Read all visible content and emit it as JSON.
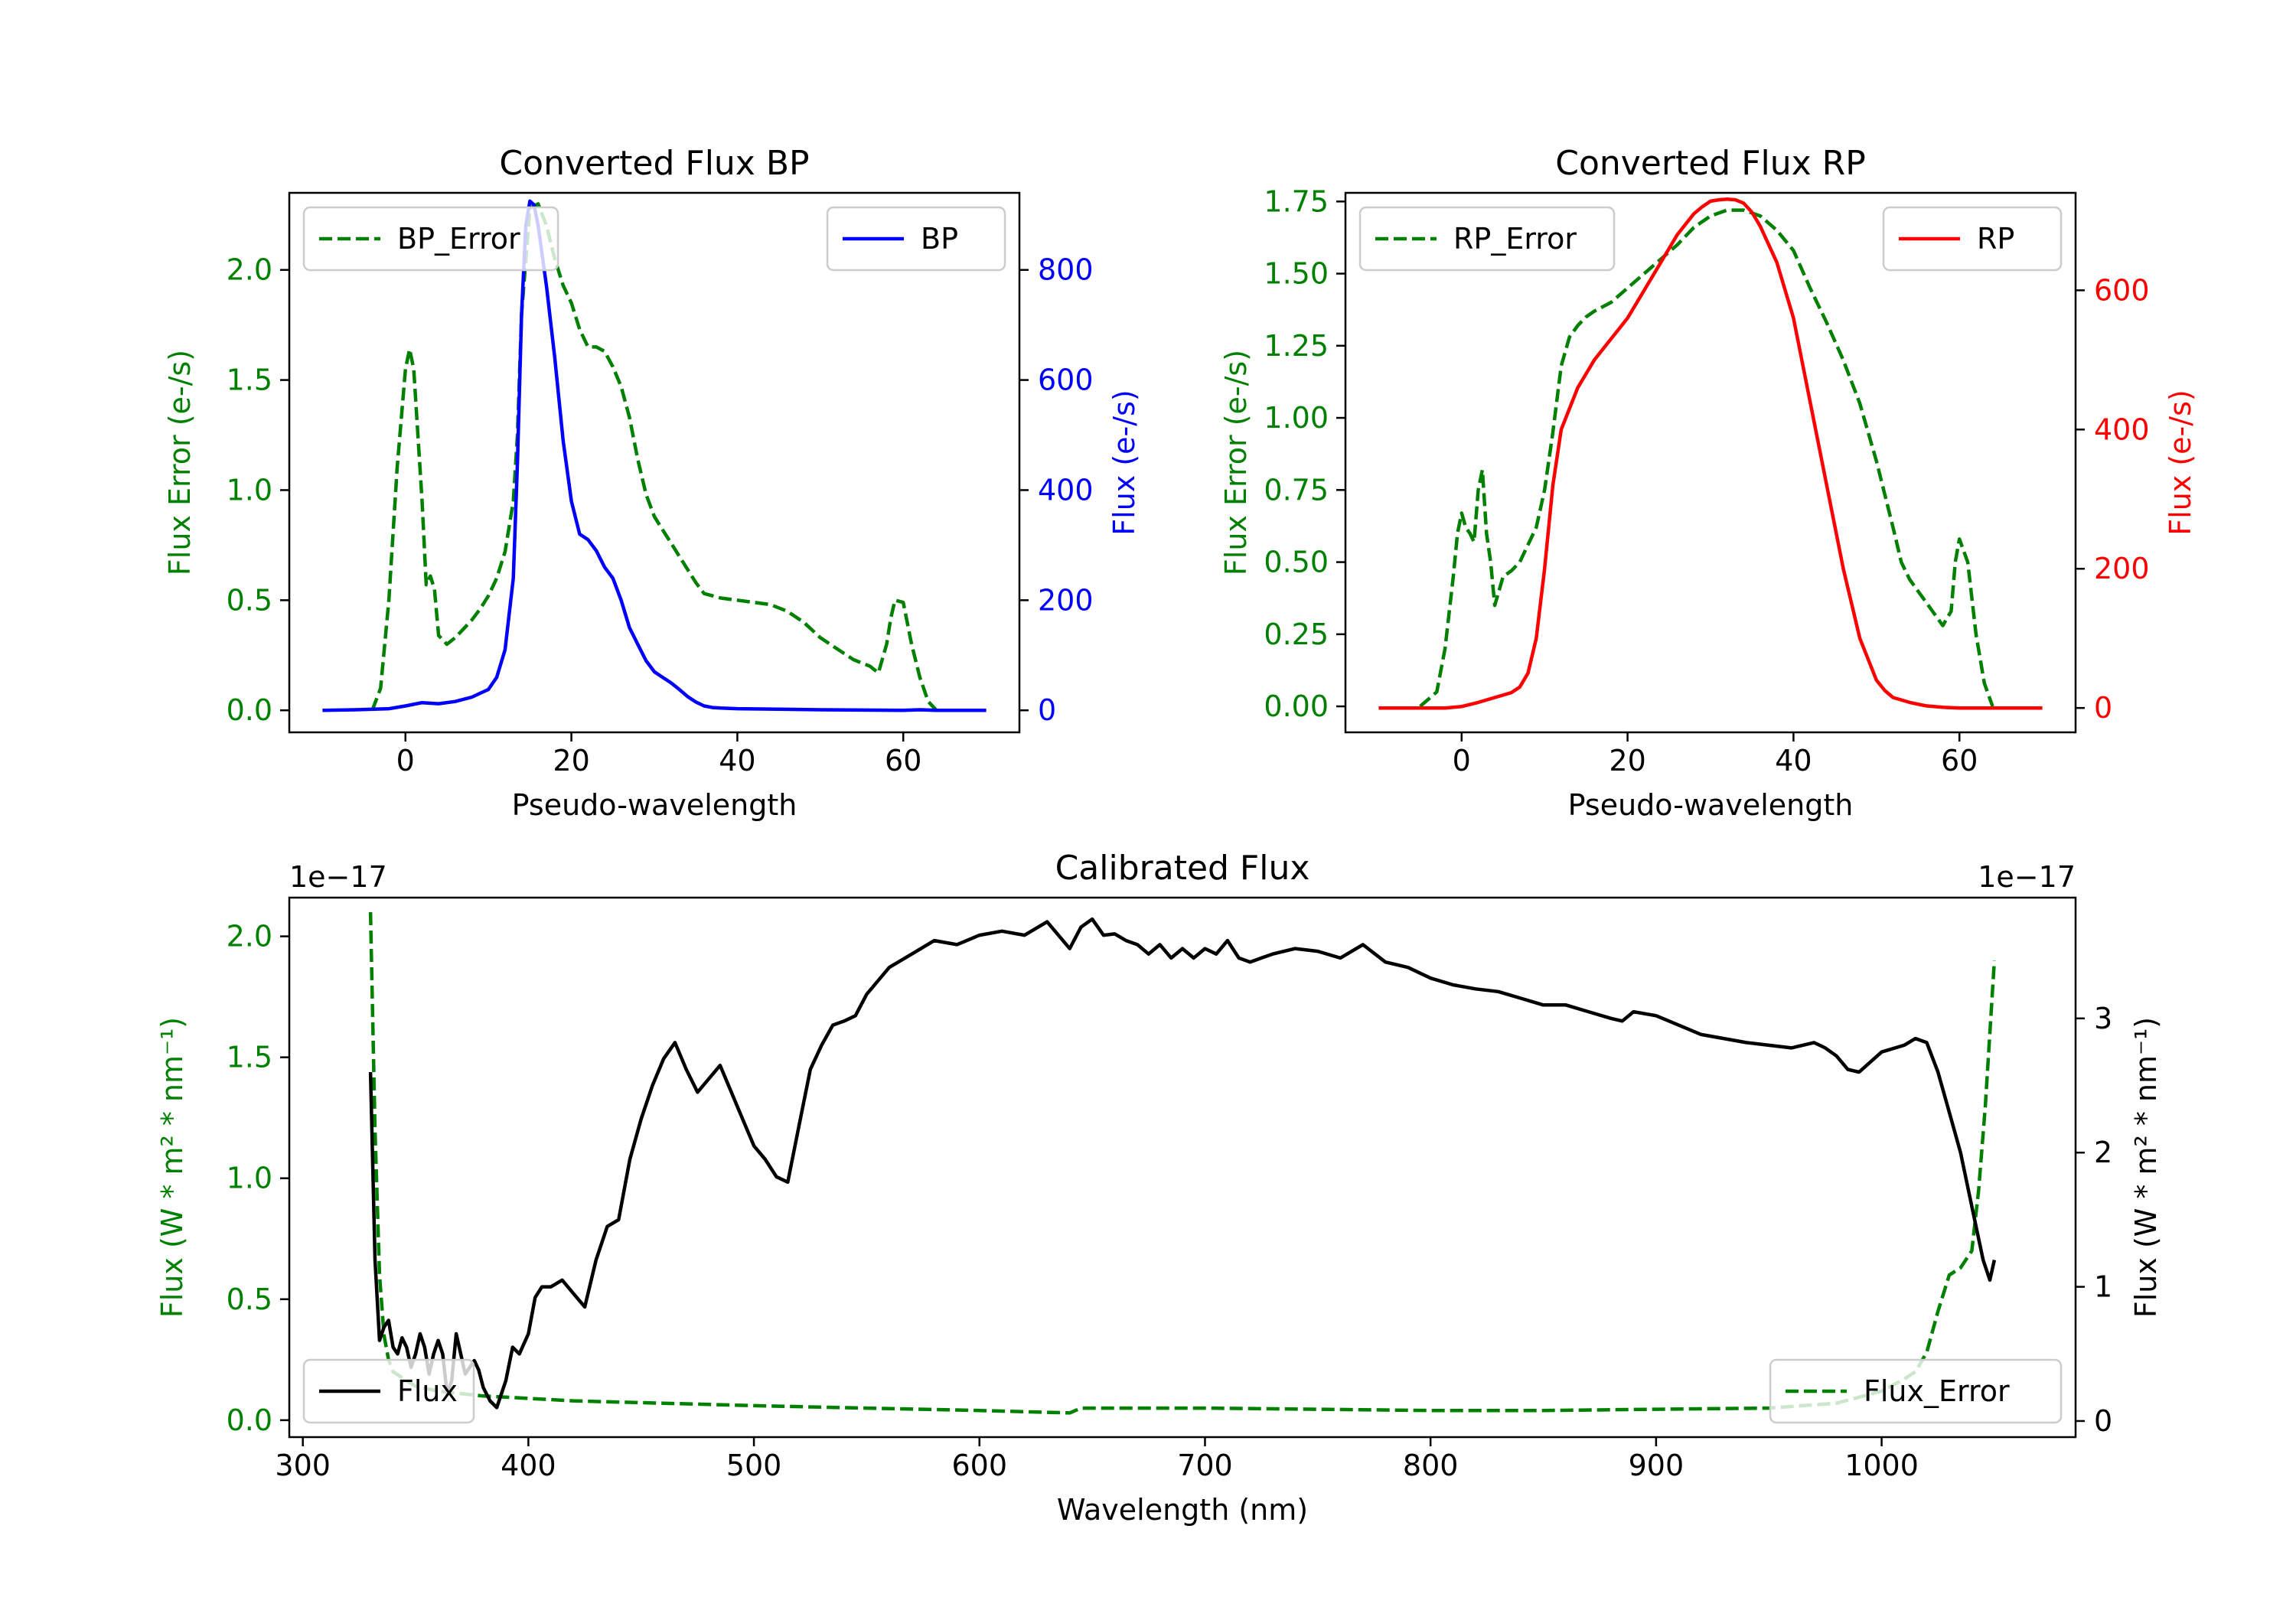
{
  "colors": {
    "error": "#008000",
    "bp": "#0000ff",
    "rp": "#ff0000",
    "flux": "#000000",
    "axis": "#000000"
  },
  "chart_data": [
    {
      "id": "bp",
      "type": "line",
      "title": "Converted Flux BP",
      "xlabel": "Pseudo-wavelength",
      "ylabel_left": "Flux Error (e-/s)",
      "ylabel_right": "Flux (e-/s)",
      "xlim": [
        -14,
        74
      ],
      "ylim_left": [
        -0.1,
        2.35
      ],
      "ylim_right": [
        -40,
        940
      ],
      "xticks": [
        "0",
        "20",
        "40",
        "60"
      ],
      "yticks_left": [
        "0.0",
        "0.5",
        "1.0",
        "1.5",
        "2.0"
      ],
      "yticks_right": [
        "0",
        "200",
        "400",
        "600",
        "800"
      ],
      "legend": [
        {
          "label": "BP_Error",
          "position": "upper-left",
          "style": "dashed"
        },
        {
          "label": "BP",
          "position": "upper-right",
          "style": "solid"
        }
      ],
      "series": [
        {
          "name": "BP_Error",
          "axis": "left",
          "style": "dashed",
          "x": [
            -4,
            -3,
            -2,
            -1,
            0,
            0.5,
            1,
            2,
            2.5,
            3,
            3.5,
            4,
            5,
            6,
            7,
            8,
            9,
            10,
            11,
            12,
            13,
            13.5,
            14,
            15,
            16,
            17,
            18,
            19,
            20,
            21,
            22,
            23,
            24,
            25,
            26,
            27,
            28,
            29,
            30,
            31,
            32,
            33,
            34,
            35,
            36,
            37,
            38,
            40,
            42,
            44,
            46,
            48,
            50,
            52,
            54,
            56,
            57,
            58,
            58.5,
            59,
            60,
            61,
            62,
            63,
            64
          ],
          "values": [
            0.0,
            0.1,
            0.5,
            1.1,
            1.55,
            1.64,
            1.55,
            0.95,
            0.57,
            0.61,
            0.55,
            0.34,
            0.3,
            0.33,
            0.37,
            0.41,
            0.46,
            0.52,
            0.6,
            0.72,
            0.95,
            1.25,
            1.8,
            2.28,
            2.3,
            2.2,
            2.05,
            1.93,
            1.85,
            1.73,
            1.65,
            1.65,
            1.63,
            1.56,
            1.47,
            1.33,
            1.14,
            0.98,
            0.88,
            0.82,
            0.76,
            0.7,
            0.64,
            0.58,
            0.53,
            0.52,
            0.51,
            0.5,
            0.49,
            0.48,
            0.45,
            0.4,
            0.33,
            0.28,
            0.23,
            0.2,
            0.17,
            0.3,
            0.42,
            0.5,
            0.49,
            0.3,
            0.15,
            0.04,
            0.0
          ]
        },
        {
          "name": "BP",
          "axis": "right",
          "style": "solid",
          "x": [
            -10,
            -6,
            -2,
            0,
            2,
            4,
            6,
            8,
            10,
            11,
            12,
            13,
            13.5,
            14,
            14.5,
            15,
            15.5,
            16,
            17,
            18,
            19,
            20,
            21,
            22,
            23,
            24,
            25,
            26,
            27,
            28,
            29,
            30,
            31,
            32,
            33,
            34,
            35,
            36,
            37,
            38,
            40,
            45,
            50,
            55,
            60,
            62,
            64,
            66,
            70
          ],
          "values": [
            0,
            1,
            3,
            8,
            14,
            12,
            16,
            24,
            38,
            60,
            110,
            240,
            450,
            720,
            880,
            925,
            918,
            880,
            770,
            640,
            490,
            380,
            320,
            310,
            290,
            260,
            240,
            200,
            150,
            120,
            90,
            70,
            60,
            50,
            38,
            25,
            15,
            8,
            5,
            4,
            3,
            2,
            1,
            0.5,
            0,
            1,
            0,
            0,
            0
          ]
        }
      ]
    },
    {
      "id": "rp",
      "type": "line",
      "title": "Converted Flux RP",
      "xlabel": "Pseudo-wavelength",
      "ylabel_left": "Flux Error (e-/s)",
      "ylabel_right": "Flux (e-/s)",
      "xlim": [
        -14,
        74
      ],
      "ylim_left": [
        -0.09,
        1.78
      ],
      "ylim_right": [
        -35,
        740
      ],
      "xticks": [
        "0",
        "20",
        "40",
        "60"
      ],
      "yticks_left": [
        "0.00",
        "0.25",
        "0.50",
        "0.75",
        "1.00",
        "1.25",
        "1.50",
        "1.75"
      ],
      "yticks_right": [
        "0",
        "200",
        "400",
        "600"
      ],
      "legend": [
        {
          "label": "RP_Error",
          "position": "upper-left",
          "style": "dashed"
        },
        {
          "label": "RP",
          "position": "upper-right",
          "style": "solid"
        }
      ],
      "series": [
        {
          "name": "RP_Error",
          "axis": "left",
          "style": "dashed",
          "x": [
            -5,
            -3,
            -2,
            -1,
            -0.5,
            0,
            0.5,
            1,
            1.5,
            2,
            2.5,
            3,
            3.5,
            4,
            5,
            6,
            7,
            8,
            9,
            10,
            11,
            12,
            13,
            14,
            15,
            16,
            18,
            20,
            22,
            24,
            26,
            28,
            30,
            32,
            34,
            36,
            38,
            40,
            42,
            44,
            46,
            48,
            50,
            52,
            53,
            54,
            55,
            56,
            57,
            58,
            59,
            59.5,
            60,
            61,
            62,
            63,
            64
          ],
          "values": [
            0.0,
            0.05,
            0.2,
            0.45,
            0.6,
            0.67,
            0.62,
            0.6,
            0.57,
            0.75,
            0.82,
            0.6,
            0.5,
            0.35,
            0.45,
            0.47,
            0.5,
            0.56,
            0.62,
            0.75,
            0.95,
            1.18,
            1.28,
            1.32,
            1.35,
            1.37,
            1.4,
            1.45,
            1.5,
            1.55,
            1.6,
            1.66,
            1.7,
            1.72,
            1.72,
            1.7,
            1.65,
            1.58,
            1.45,
            1.33,
            1.2,
            1.05,
            0.85,
            0.62,
            0.5,
            0.44,
            0.4,
            0.36,
            0.32,
            0.28,
            0.33,
            0.5,
            0.58,
            0.5,
            0.25,
            0.08,
            0.0
          ]
        },
        {
          "name": "RP",
          "axis": "right",
          "style": "solid",
          "x": [
            -10,
            -5,
            -2,
            0,
            2,
            4,
            6,
            7,
            8,
            9,
            10,
            11,
            12,
            13,
            14,
            15,
            16,
            18,
            20,
            22,
            24,
            26,
            28,
            29,
            30,
            31,
            32,
            33,
            34,
            35,
            36,
            38,
            40,
            42,
            44,
            46,
            48,
            50,
            51,
            52,
            54,
            56,
            58,
            60,
            64,
            70
          ],
          "values": [
            0,
            0,
            0,
            2,
            8,
            15,
            22,
            30,
            50,
            100,
            200,
            320,
            400,
            430,
            460,
            480,
            500,
            530,
            560,
            600,
            640,
            680,
            710,
            720,
            728,
            730,
            731,
            730,
            725,
            712,
            692,
            640,
            560,
            440,
            320,
            200,
            100,
            40,
            25,
            15,
            8,
            3,
            1,
            0,
            0,
            0
          ]
        }
      ]
    },
    {
      "id": "calibrated",
      "type": "line",
      "title": "Calibrated Flux",
      "xlabel": "Wavelength (nm)",
      "ylabel_left": "Flux (W * m² * nm⁻¹)",
      "ylabel_right": "Flux (W * m² * nm⁻¹)",
      "offset_left": "1e−17",
      "offset_right": "1e−17",
      "xlim": [
        294,
        1086
      ],
      "ylim_left": [
        -0.07,
        2.16
      ],
      "ylim_right": [
        -0.12,
        3.9
      ],
      "xticks": [
        "300",
        "400",
        "500",
        "600",
        "700",
        "800",
        "900",
        "1000"
      ],
      "yticks_left": [
        "0.0",
        "0.5",
        "1.0",
        "1.5",
        "2.0"
      ],
      "yticks_right": [
        "0",
        "1",
        "2",
        "3"
      ],
      "legend": [
        {
          "label": "Flux",
          "position": "lower-left",
          "style": "solid"
        },
        {
          "label": "Flux_Error",
          "position": "lower-right",
          "style": "dashed"
        }
      ],
      "series": [
        {
          "name": "Flux_Error",
          "axis": "left",
          "style": "dashed",
          "x": [
            330,
            332,
            334,
            336,
            338,
            340,
            345,
            350,
            360,
            370,
            380,
            390,
            400,
            420,
            440,
            460,
            500,
            550,
            600,
            640,
            645,
            700,
            750,
            800,
            850,
            900,
            950,
            980,
            1000,
            1010,
            1015,
            1020,
            1025,
            1030,
            1035,
            1040,
            1043,
            1046,
            1048,
            1050
          ],
          "values": [
            2.1,
            1.2,
            0.6,
            0.35,
            0.25,
            0.2,
            0.17,
            0.14,
            0.12,
            0.11,
            0.1,
            0.095,
            0.09,
            0.08,
            0.075,
            0.07,
            0.06,
            0.05,
            0.04,
            0.03,
            0.05,
            0.05,
            0.045,
            0.04,
            0.04,
            0.045,
            0.05,
            0.07,
            0.12,
            0.17,
            0.2,
            0.28,
            0.45,
            0.6,
            0.63,
            0.7,
            0.95,
            1.3,
            1.6,
            1.9
          ]
        },
        {
          "name": "Flux",
          "axis": "right",
          "style": "solid",
          "x": [
            330,
            332,
            334,
            336,
            338,
            340,
            342,
            344,
            346,
            348,
            350,
            352,
            354,
            356,
            358,
            360,
            362,
            364,
            366,
            368,
            370,
            372,
            374,
            376,
            378,
            380,
            383,
            386,
            390,
            393,
            396,
            400,
            403,
            406,
            410,
            415,
            420,
            425,
            430,
            435,
            440,
            445,
            450,
            455,
            460,
            465,
            470,
            475,
            480,
            485,
            490,
            495,
            500,
            505,
            510,
            515,
            520,
            525,
            530,
            535,
            540,
            545,
            550,
            560,
            570,
            580,
            590,
            600,
            610,
            620,
            630,
            635,
            640,
            645,
            650,
            655,
            660,
            665,
            670,
            675,
            680,
            685,
            690,
            695,
            700,
            705,
            710,
            715,
            720,
            725,
            730,
            740,
            750,
            760,
            770,
            780,
            790,
            800,
            810,
            820,
            830,
            840,
            850,
            860,
            870,
            880,
            885,
            890,
            900,
            910,
            920,
            930,
            940,
            950,
            960,
            970,
            975,
            980,
            985,
            990,
            1000,
            1010,
            1015,
            1020,
            1025,
            1030,
            1035,
            1040,
            1045,
            1048,
            1050
          ],
          "values": [
            2.6,
            1.2,
            0.6,
            0.7,
            0.75,
            0.55,
            0.5,
            0.62,
            0.55,
            0.4,
            0.5,
            0.65,
            0.55,
            0.35,
            0.5,
            0.6,
            0.5,
            0.2,
            0.3,
            0.65,
            0.5,
            0.35,
            0.4,
            0.45,
            0.38,
            0.25,
            0.15,
            0.1,
            0.3,
            0.55,
            0.5,
            0.65,
            0.92,
            1.0,
            1.0,
            1.05,
            0.95,
            0.85,
            1.2,
            1.45,
            1.5,
            1.95,
            2.25,
            2.5,
            2.7,
            2.82,
            2.62,
            2.45,
            2.55,
            2.65,
            2.45,
            2.25,
            2.05,
            1.95,
            1.82,
            1.78,
            2.2,
            2.62,
            2.8,
            2.95,
            2.98,
            3.02,
            3.18,
            3.38,
            3.48,
            3.58,
            3.55,
            3.62,
            3.65,
            3.62,
            3.72,
            3.62,
            3.52,
            3.68,
            3.74,
            3.62,
            3.63,
            3.58,
            3.55,
            3.48,
            3.55,
            3.45,
            3.52,
            3.45,
            3.52,
            3.48,
            3.58,
            3.45,
            3.42,
            3.45,
            3.48,
            3.52,
            3.5,
            3.45,
            3.55,
            3.42,
            3.38,
            3.3,
            3.25,
            3.22,
            3.2,
            3.15,
            3.1,
            3.1,
            3.05,
            3.0,
            2.98,
            3.05,
            3.02,
            2.95,
            2.88,
            2.85,
            2.82,
            2.8,
            2.78,
            2.82,
            2.78,
            2.72,
            2.62,
            2.6,
            2.75,
            2.8,
            2.85,
            2.82,
            2.6,
            2.3,
            2.0,
            1.6,
            1.2,
            1.05,
            1.2
          ]
        }
      ]
    }
  ]
}
